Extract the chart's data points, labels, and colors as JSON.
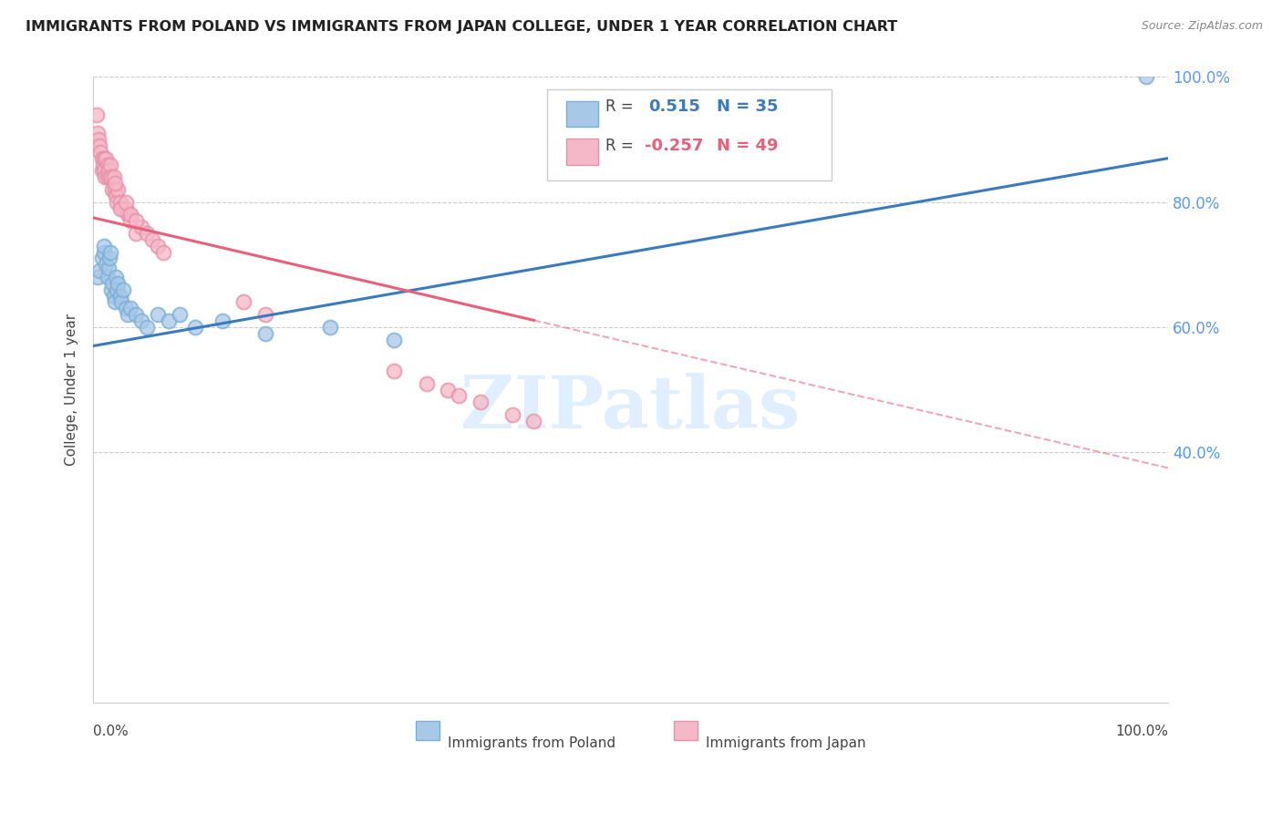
{
  "title": "IMMIGRANTS FROM POLAND VS IMMIGRANTS FROM JAPAN COLLEGE, UNDER 1 YEAR CORRELATION CHART",
  "source": "Source: ZipAtlas.com",
  "ylabel": "College, Under 1 year",
  "legend_label1": "Immigrants from Poland",
  "legend_label2": "Immigrants from Japan",
  "blue_color": "#a8c8e8",
  "pink_color": "#f4b8c8",
  "blue_line_color": "#3a7abf",
  "pink_line_color": "#e8607a",
  "blue_dot_edge": "#7aafd4",
  "pink_dot_edge": "#e890a8",
  "poland_x": [
    0.004,
    0.006,
    0.008,
    0.01,
    0.01,
    0.012,
    0.013,
    0.014,
    0.015,
    0.016,
    0.017,
    0.018,
    0.019,
    0.02,
    0.021,
    0.022,
    0.023,
    0.025,
    0.026,
    0.028,
    0.03,
    0.032,
    0.035,
    0.04,
    0.045,
    0.05,
    0.06,
    0.07,
    0.08,
    0.095,
    0.12,
    0.16,
    0.22,
    0.28,
    0.98
  ],
  "poland_y": [
    0.68,
    0.69,
    0.71,
    0.72,
    0.73,
    0.7,
    0.68,
    0.695,
    0.71,
    0.72,
    0.66,
    0.67,
    0.65,
    0.64,
    0.68,
    0.66,
    0.67,
    0.65,
    0.64,
    0.66,
    0.63,
    0.62,
    0.63,
    0.62,
    0.61,
    0.6,
    0.62,
    0.61,
    0.62,
    0.6,
    0.61,
    0.59,
    0.6,
    0.58,
    1.0
  ],
  "japan_x": [
    0.003,
    0.004,
    0.005,
    0.006,
    0.007,
    0.008,
    0.008,
    0.009,
    0.01,
    0.01,
    0.011,
    0.012,
    0.013,
    0.013,
    0.014,
    0.015,
    0.016,
    0.017,
    0.018,
    0.019,
    0.02,
    0.021,
    0.022,
    0.023,
    0.025,
    0.027,
    0.03,
    0.032,
    0.035,
    0.04,
    0.045,
    0.05,
    0.055,
    0.06,
    0.065,
    0.02,
    0.025,
    0.03,
    0.035,
    0.04,
    0.14,
    0.16,
    0.28,
    0.31,
    0.33,
    0.34,
    0.36,
    0.39,
    0.41
  ],
  "japan_y": [
    0.94,
    0.91,
    0.9,
    0.89,
    0.88,
    0.87,
    0.85,
    0.86,
    0.87,
    0.85,
    0.84,
    0.87,
    0.84,
    0.86,
    0.85,
    0.84,
    0.86,
    0.84,
    0.82,
    0.84,
    0.82,
    0.81,
    0.8,
    0.82,
    0.8,
    0.79,
    0.79,
    0.78,
    0.77,
    0.75,
    0.76,
    0.75,
    0.74,
    0.73,
    0.72,
    0.83,
    0.79,
    0.8,
    0.78,
    0.77,
    0.64,
    0.62,
    0.53,
    0.51,
    0.5,
    0.49,
    0.48,
    0.46,
    0.45
  ],
  "blue_line_x0": 0.0,
  "blue_line_y0": 0.57,
  "blue_line_x1": 1.0,
  "blue_line_y1": 0.87,
  "pink_line_x0": 0.0,
  "pink_line_y0": 0.775,
  "pink_line_x1_solid": 0.41,
  "pink_line_x1": 1.0,
  "pink_line_y1": 0.375,
  "xlim": [
    0.0,
    1.0
  ],
  "ylim": [
    0.0,
    1.0
  ],
  "yticks": [
    0.4,
    0.6,
    0.8,
    1.0
  ],
  "ytick_labels_right": [
    "40.0%",
    "60.0%",
    "80.0%",
    "100.0%"
  ],
  "xtick_left_label": "0.0%",
  "xtick_right_label": "100.0%",
  "watermark": "ZIPatlas",
  "background_color": "#ffffff",
  "grid_color": "#cccccc",
  "right_axis_color": "#5599ff",
  "title_fontsize": 11.5,
  "axis_label_fontsize": 11,
  "legend_r1_text": "R =  0.515",
  "legend_n1_text": "N = 35",
  "legend_r2_text": "R = -0.257",
  "legend_n2_text": "N = 49"
}
